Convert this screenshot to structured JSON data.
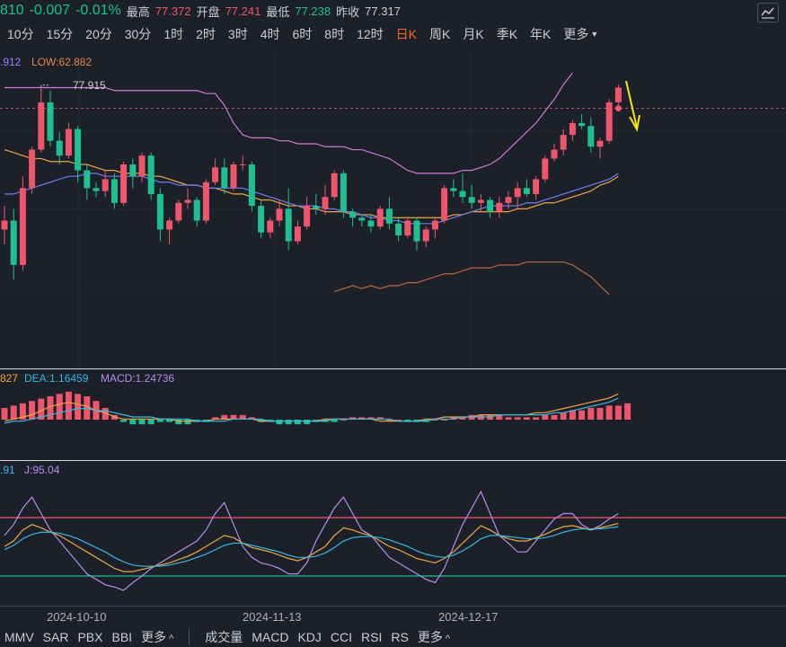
{
  "quote": {
    "price_partial": "810",
    "change": "-0.007",
    "change_pct": "-0.01%",
    "high_label": "最高",
    "high": "77.372",
    "open_label": "开盘",
    "open": "77.241",
    "low_label": "最低",
    "low": "77.238",
    "prev_close_label": "昨收",
    "prev_close": "77.317"
  },
  "periods": [
    "10分",
    "15分",
    "20分",
    "30分",
    "1时",
    "2时",
    "3时",
    "4时",
    "6时",
    "8时",
    "12时",
    "日K",
    "周K",
    "月K",
    "季K",
    "年K"
  ],
  "active_period": "日K",
  "more_label": "更多",
  "main_legend": {
    "partial_value": ".912",
    "low_text": "LOW:62.882",
    "peak_label": "77.915"
  },
  "macd_legend": {
    "partial": "827",
    "dea": "DEA:1.16459",
    "macd": "MACD:1.24736"
  },
  "kdj_legend": {
    "partial": ".91",
    "j": "J:95.04"
  },
  "dates": [
    "2024-10-10",
    "2024-11-13",
    "2024-12-17"
  ],
  "bottom_tabs_left": [
    "MMV",
    "SAR",
    "PBX",
    "BBI"
  ],
  "bottom_tabs_right": [
    "成交量",
    "MACD",
    "KDJ",
    "CCI",
    "RSI",
    "RS"
  ],
  "colors": {
    "up": "#f0566b",
    "down": "#1fbf94",
    "accent": "#f56a1b",
    "bg": "#1b2029"
  },
  "chart_data": {
    "type": "candlestick",
    "candles": [
      [
        73.2,
        74.0,
        72.7,
        73.5
      ],
      [
        73.5,
        73.9,
        71.5,
        72.0
      ],
      [
        72.0,
        75.0,
        71.8,
        74.6
      ],
      [
        74.6,
        76.0,
        74.4,
        75.9
      ],
      [
        75.9,
        77.9,
        75.8,
        77.5
      ],
      [
        77.5,
        77.9,
        76.0,
        76.2
      ],
      [
        76.2,
        76.5,
        75.4,
        75.7
      ],
      [
        75.7,
        76.8,
        75.6,
        76.6
      ],
      [
        76.6,
        76.7,
        74.8,
        75.2
      ],
      [
        75.2,
        75.4,
        74.2,
        74.6
      ],
      [
        74.6,
        74.8,
        74.3,
        74.5
      ],
      [
        74.5,
        75.2,
        74.3,
        74.9
      ],
      [
        74.9,
        75.1,
        73.9,
        74.1
      ],
      [
        74.1,
        75.5,
        74.0,
        75.4
      ],
      [
        75.4,
        75.6,
        74.6,
        75.0
      ],
      [
        75.0,
        75.8,
        74.8,
        75.7
      ],
      [
        75.7,
        75.8,
        74.2,
        74.4
      ],
      [
        74.4,
        74.6,
        72.8,
        73.2
      ],
      [
        73.2,
        73.6,
        72.7,
        73.5
      ],
      [
        73.5,
        74.2,
        73.4,
        74.1
      ],
      [
        74.1,
        74.6,
        73.9,
        74.2
      ],
      [
        74.2,
        74.3,
        73.3,
        73.5
      ],
      [
        73.5,
        74.9,
        73.4,
        74.8
      ],
      [
        74.8,
        75.6,
        74.7,
        75.3
      ],
      [
        75.3,
        75.6,
        74.4,
        74.6
      ],
      [
        74.6,
        75.5,
        74.5,
        75.4
      ],
      [
        75.4,
        75.7,
        75.2,
        75.4
      ],
      [
        75.4,
        75.5,
        73.8,
        74.0
      ],
      [
        74.0,
        74.2,
        72.9,
        73.1
      ],
      [
        73.1,
        73.6,
        72.9,
        73.5
      ],
      [
        73.5,
        74.2,
        73.3,
        73.9
      ],
      [
        73.9,
        74.6,
        72.5,
        72.8
      ],
      [
        72.8,
        73.5,
        72.7,
        73.3
      ],
      [
        73.3,
        74.3,
        73.2,
        74.0
      ],
      [
        74.0,
        74.4,
        73.7,
        73.9
      ],
      [
        73.9,
        74.7,
        73.7,
        74.3
      ],
      [
        74.3,
        75.2,
        74.2,
        75.1
      ],
      [
        75.1,
        75.2,
        73.6,
        73.8
      ],
      [
        73.8,
        73.9,
        73.3,
        73.6
      ],
      [
        73.6,
        73.7,
        73.3,
        73.5
      ],
      [
        73.5,
        73.7,
        73.1,
        73.3
      ],
      [
        73.3,
        74.0,
        73.2,
        73.9
      ],
      [
        73.9,
        74.3,
        73.2,
        73.4
      ],
      [
        73.4,
        73.6,
        72.8,
        73.0
      ],
      [
        73.0,
        73.6,
        72.9,
        73.5
      ],
      [
        73.5,
        73.6,
        72.5,
        72.8
      ],
      [
        72.8,
        73.3,
        72.6,
        73.2
      ],
      [
        73.2,
        73.6,
        72.9,
        73.5
      ],
      [
        73.5,
        74.7,
        73.4,
        74.6
      ],
      [
        74.6,
        74.9,
        74.3,
        74.5
      ],
      [
        74.5,
        75.1,
        74.1,
        74.3
      ],
      [
        74.3,
        74.7,
        73.9,
        74.1
      ],
      [
        74.1,
        74.4,
        73.8,
        74.2
      ],
      [
        74.2,
        74.3,
        73.6,
        73.8
      ],
      [
        73.8,
        74.3,
        73.6,
        74.1
      ],
      [
        74.1,
        74.5,
        73.9,
        74.3
      ],
      [
        74.3,
        74.8,
        73.9,
        74.6
      ],
      [
        74.6,
        74.9,
        74.3,
        74.4
      ],
      [
        74.4,
        75.0,
        74.2,
        74.9
      ],
      [
        74.9,
        75.7,
        74.8,
        75.6
      ],
      [
        75.6,
        76.1,
        75.5,
        75.9
      ],
      [
        75.9,
        76.6,
        75.7,
        76.4
      ],
      [
        76.4,
        76.9,
        76.2,
        76.8
      ],
      [
        76.8,
        77.1,
        76.6,
        76.7
      ],
      [
        76.7,
        77.0,
        75.8,
        76.0
      ],
      [
        76.0,
        76.3,
        75.6,
        76.2
      ],
      [
        76.2,
        77.6,
        76.1,
        77.5
      ],
      [
        77.5,
        78.1,
        77.2,
        78.0
      ]
    ],
    "ma_slow": [
      75.9,
      75.8,
      75.7,
      75.6,
      75.6,
      75.5,
      75.5,
      75.5,
      75.4,
      75.4,
      75.3,
      75.2,
      75.2,
      75.1,
      75.1,
      75.1,
      75.0,
      75.0,
      74.9,
      74.8,
      74.7,
      74.7,
      74.6,
      74.6,
      74.5,
      74.4,
      74.4,
      74.3,
      74.2,
      74.2,
      74.1,
      74.0,
      74.0,
      73.9,
      73.9,
      73.8,
      73.8,
      73.8,
      73.7,
      73.7,
      73.7,
      73.6,
      73.6,
      73.6,
      73.6,
      73.6,
      73.6,
      73.6,
      73.6,
      73.7,
      73.7,
      73.8,
      73.8,
      73.8,
      73.8,
      73.8,
      73.9,
      73.9,
      74.0,
      74.1,
      74.1,
      74.2,
      74.3,
      74.4,
      74.5,
      74.7,
      74.8,
      75.0
    ],
    "ma_fast": [
      74.4,
      74.4,
      74.5,
      74.6,
      74.7,
      74.8,
      74.9,
      75.0,
      75.0,
      75.1,
      75.1,
      75.0,
      75.0,
      75.0,
      75.0,
      75.0,
      74.9,
      74.8,
      74.8,
      74.7,
      74.7,
      74.7,
      74.6,
      74.6,
      74.6,
      74.6,
      74.6,
      74.5,
      74.4,
      74.3,
      74.2,
      74.1,
      74.0,
      74.0,
      74.0,
      73.9,
      73.9,
      73.8,
      73.8,
      73.7,
      73.6,
      73.6,
      73.5,
      73.5,
      73.4,
      73.4,
      73.4,
      73.4,
      73.5,
      73.6,
      73.7,
      73.8,
      73.9,
      74.0,
      74.0,
      74.0,
      74.0,
      74.1,
      74.1,
      74.2,
      74.3,
      74.4,
      74.5,
      74.6,
      74.7,
      74.8,
      74.9,
      75.1
    ],
    "band_upper": [
      78.0,
      78.0,
      78.0,
      78.0,
      78.0,
      78.0,
      78.0,
      78.0,
      78.0,
      78.0,
      78.0,
      78.0,
      77.9,
      77.9,
      77.9,
      77.9,
      77.9,
      77.9,
      77.9,
      77.9,
      77.9,
      77.9,
      77.8,
      77.8,
      77.4,
      76.8,
      76.4,
      76.3,
      76.3,
      76.3,
      76.2,
      76.2,
      76.1,
      76.1,
      76.1,
      76.0,
      76.0,
      76.0,
      75.9,
      75.9,
      75.8,
      75.7,
      75.6,
      75.4,
      75.2,
      75.1,
      75.1,
      75.1,
      75.1,
      75.1,
      75.2,
      75.2,
      75.3,
      75.4,
      75.6,
      75.9,
      76.2,
      76.5,
      76.8,
      77.2,
      77.6,
      78.1,
      78.5
    ],
    "band_lower": [
      71.1,
      71.2,
      71.3,
      71.2,
      71.3,
      71.2,
      71.3,
      71.3,
      71.4,
      71.4,
      71.5,
      71.6,
      71.7,
      71.7,
      71.8,
      71.9,
      71.9,
      71.9,
      72.0,
      72.0,
      72.0,
      72.1,
      72.1,
      72.1,
      72.1,
      72.1,
      72.0,
      71.8,
      71.6,
      71.3,
      71.0
    ],
    "macd_hist": [
      0.5,
      0.6,
      0.7,
      0.8,
      0.9,
      1.0,
      1.1,
      1.2,
      1.1,
      1.0,
      0.8,
      0.5,
      0.2,
      -0.1,
      -0.2,
      -0.2,
      -0.2,
      -0.1,
      -0.1,
      -0.2,
      -0.2,
      -0.1,
      -0.1,
      0.1,
      0.2,
      0.2,
      0.2,
      0.1,
      -0.1,
      -0.1,
      -0.2,
      -0.2,
      -0.2,
      -0.2,
      -0.1,
      -0.1,
      -0.1,
      0.0,
      0.1,
      0.1,
      0.1,
      0.1,
      0.0,
      0.0,
      -0.1,
      -0.1,
      -0.1,
      0.0,
      0.0,
      0.1,
      0.1,
      0.2,
      0.2,
      0.2,
      0.2,
      0.1,
      0.1,
      0.1,
      0.1,
      0.2,
      0.2,
      0.3,
      0.4,
      0.4,
      0.5,
      0.5,
      0.6,
      0.6,
      0.7
    ],
    "dif": [
      0.1,
      0.2,
      0.3,
      0.4,
      0.6,
      0.8,
      0.9,
      1.0,
      0.9,
      0.8,
      0.6,
      0.5,
      0.3,
      0.2,
      0.2,
      0.2,
      0.2,
      0.2,
      0.2,
      0.1,
      0.1,
      0.1,
      0.1,
      0.2,
      0.2,
      0.2,
      0.2,
      0.2,
      0.1,
      0.1,
      0.1,
      0.1,
      0.1,
      0.1,
      0.1,
      0.2,
      0.2,
      0.2,
      0.2,
      0.2,
      0.2,
      0.1,
      0.1,
      0.1,
      0.1,
      0.1,
      0.2,
      0.2,
      0.3,
      0.3,
      0.3,
      0.3,
      0.4,
      0.4,
      0.4,
      0.4,
      0.4,
      0.4,
      0.5,
      0.5,
      0.6,
      0.7,
      0.8,
      0.9,
      1.0,
      1.1,
      1.2,
      1.4
    ],
    "dea": [
      0.0,
      0.1,
      0.1,
      0.2,
      0.3,
      0.4,
      0.5,
      0.6,
      0.7,
      0.7,
      0.6,
      0.6,
      0.5,
      0.4,
      0.3,
      0.3,
      0.3,
      0.2,
      0.2,
      0.2,
      0.2,
      0.1,
      0.1,
      0.1,
      0.1,
      0.2,
      0.2,
      0.2,
      0.2,
      0.1,
      0.1,
      0.1,
      0.1,
      0.1,
      0.1,
      0.1,
      0.2,
      0.2,
      0.2,
      0.2,
      0.2,
      0.2,
      0.2,
      0.1,
      0.1,
      0.1,
      0.1,
      0.2,
      0.2,
      0.2,
      0.3,
      0.3,
      0.3,
      0.3,
      0.4,
      0.4,
      0.4,
      0.4,
      0.4,
      0.4,
      0.5,
      0.5,
      0.6,
      0.7,
      0.8,
      0.9,
      1.0,
      1.2
    ],
    "k": [
      45,
      50,
      60,
      65,
      62,
      58,
      55,
      50,
      45,
      40,
      35,
      30,
      25,
      22,
      22,
      24,
      26,
      28,
      30,
      33,
      36,
      40,
      45,
      50,
      55,
      53,
      48,
      44,
      42,
      40,
      37,
      34,
      32,
      35,
      40,
      45,
      55,
      62,
      60,
      57,
      55,
      50,
      45,
      42,
      38,
      34,
      32,
      30,
      34,
      40,
      48,
      56,
      64,
      60,
      55,
      52,
      50,
      50,
      53,
      56,
      60,
      63,
      64,
      62,
      60,
      62,
      64,
      66
    ],
    "d": [
      42,
      46,
      52,
      56,
      58,
      58,
      57,
      55,
      52,
      48,
      44,
      40,
      35,
      31,
      28,
      27,
      27,
      27,
      28,
      30,
      32,
      35,
      38,
      42,
      46,
      48,
      48,
      46,
      44,
      42,
      40,
      37,
      35,
      35,
      36,
      39,
      44,
      50,
      53,
      54,
      54,
      53,
      51,
      48,
      45,
      41,
      38,
      36,
      35,
      37,
      41,
      46,
      52,
      55,
      55,
      54,
      53,
      52,
      52,
      53,
      55,
      58,
      60,
      61,
      61,
      61,
      62,
      63
    ],
    "j": [
      55,
      65,
      80,
      90,
      75,
      60,
      50,
      40,
      30,
      20,
      15,
      10,
      8,
      5,
      12,
      18,
      25,
      30,
      35,
      40,
      45,
      50,
      60,
      75,
      85,
      65,
      45,
      35,
      30,
      28,
      25,
      20,
      20,
      30,
      50,
      65,
      80,
      90,
      75,
      60,
      55,
      45,
      35,
      30,
      25,
      20,
      15,
      12,
      25,
      45,
      65,
      80,
      95,
      75,
      55,
      48,
      40,
      40,
      50,
      60,
      70,
      75,
      75,
      65,
      60,
      64,
      70,
      75
    ]
  }
}
